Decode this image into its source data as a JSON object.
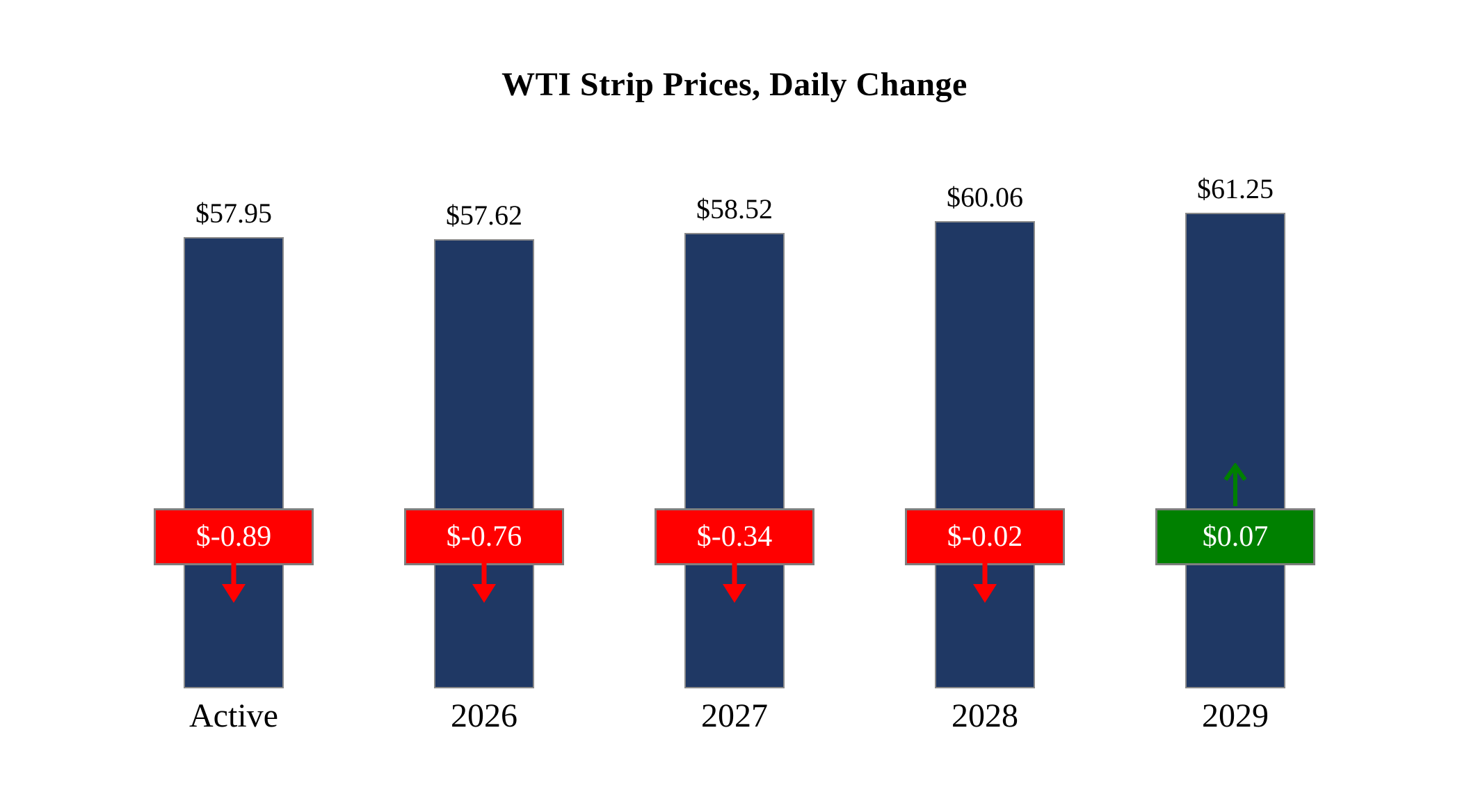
{
  "title": "WTI Strip Prices, Daily Change",
  "chart_data": {
    "type": "bar",
    "title": "WTI Strip Prices, Daily Change",
    "categories": [
      "Active",
      "2026",
      "2027",
      "2028",
      "2029"
    ],
    "series": [
      {
        "name": "WTI Strip Price",
        "values": [
          57.95,
          57.62,
          58.52,
          60.06,
          61.25
        ]
      },
      {
        "name": "Daily Change",
        "values": [
          -0.89,
          -0.76,
          -0.34,
          -0.02,
          0.07
        ]
      }
    ],
    "bars": [
      {
        "category": "Active",
        "price": 57.95,
        "price_label": "$57.95",
        "change": -0.89,
        "change_label": "$-0.89",
        "direction": "down"
      },
      {
        "category": "2026",
        "price": 57.62,
        "price_label": "$57.62",
        "change": -0.76,
        "change_label": "$-0.76",
        "direction": "down"
      },
      {
        "category": "2027",
        "price": 58.52,
        "price_label": "$58.52",
        "change": -0.34,
        "change_label": "$-0.34",
        "direction": "down"
      },
      {
        "category": "2028",
        "price": 60.06,
        "price_label": "$60.06",
        "change": -0.02,
        "change_label": "$-0.02",
        "direction": "down"
      },
      {
        "category": "2029",
        "price": 61.25,
        "price_label": "$61.25",
        "change": 0.07,
        "change_label": "$0.07",
        "direction": "up"
      }
    ],
    "colors": {
      "bar": "#1F3864",
      "negative": "#FF0000",
      "positive": "#008000",
      "badge_border": "#7F7F7F",
      "badge_text": "#FFFFFF"
    },
    "legend": "none",
    "grid": false
  }
}
